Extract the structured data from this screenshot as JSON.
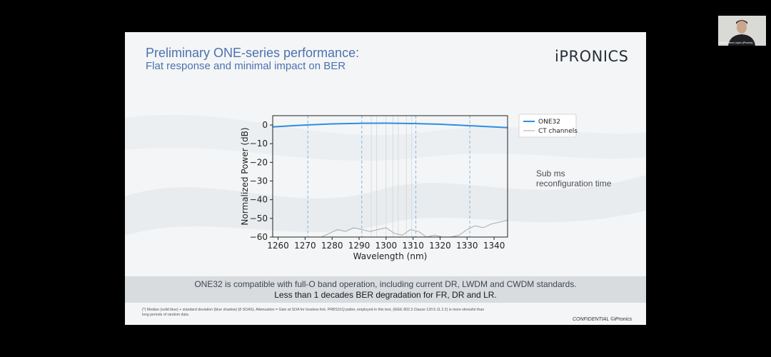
{
  "slide": {
    "title": "Preliminary ONE-series performance:",
    "subtitle": "Flat response and minimal impact on BER",
    "logo": "iPRONICS",
    "side_note": "Sub ms reconfiguration time",
    "banner": {
      "line1": "ONE32 is compatible with full-O band operation, including current DR, LWDM and CWDM standards.",
      "line2": "Less than 1 decades BER degradation for FR, DR and LR."
    },
    "footnote": "(*) Median (solid blue) + standard deviation (blue shadow) (8 SOAS). Attenuation = Gain at SOA for lossless link. PRBS31Q patter, employed in this test, (IEEE 802.3 Clause 120.5.11.2.2) is more stressful than long periods of random data.",
    "confidential": "CONFIDENTIAL ©iPronics"
  },
  "webcam": {
    "name": "Daniel Pérez-López (iPronics)"
  },
  "colors": {
    "title": "#4a72b0",
    "one32_line": "#2e8ee0",
    "ct_line": "#a8a8a8",
    "dashed": "#6fb2e6"
  },
  "chart_data": {
    "type": "line",
    "xlabel": "Wavelength (nm)",
    "ylabel": "Normalized Power (dB)",
    "xlim": [
      1258,
      1345
    ],
    "ylim": [
      -60,
      5
    ],
    "xticks": [
      1260,
      1270,
      1280,
      1290,
      1300,
      1310,
      1320,
      1330,
      1340
    ],
    "yticks": [
      0,
      -10,
      -20,
      -30,
      -40,
      -50,
      -60
    ],
    "legend_position": "outside-right",
    "series": [
      {
        "name": "ONE32",
        "x": [
          1258,
          1265,
          1270,
          1280,
          1290,
          1300,
          1310,
          1320,
          1330,
          1340,
          1345
        ],
        "y": [
          -1.0,
          -0.4,
          0.0,
          0.6,
          0.9,
          1.0,
          0.8,
          0.4,
          -0.3,
          -1.0,
          -1.4
        ]
      },
      {
        "name": "CT channels",
        "x": [
          1276,
          1279,
          1282,
          1285,
          1288,
          1291,
          1294,
          1297,
          1300,
          1303,
          1306,
          1309,
          1312,
          1315,
          1318,
          1321,
          1324,
          1327,
          1330,
          1333,
          1336,
          1339,
          1342,
          1345
        ],
        "y": [
          -60,
          -58,
          -56,
          -57,
          -55,
          -56,
          -57,
          -56,
          -55,
          -58,
          -59,
          -56,
          -57,
          -60,
          -59,
          -60,
          -60,
          -59,
          -56,
          -54,
          -55,
          -53,
          -52,
          -51
        ]
      }
    ],
    "dashed_vlines": [
      1271,
      1291,
      1311,
      1331
    ],
    "faint_vlines": [
      1294.5,
      1296.5,
      1300,
      1302.5,
      1304.5,
      1307.5,
      1309.5
    ]
  }
}
